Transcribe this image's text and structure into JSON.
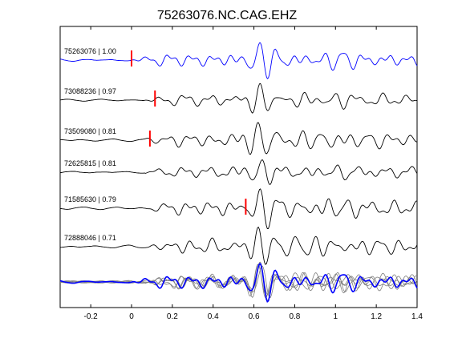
{
  "chart_data": {
    "type": "line",
    "title": "75263076.NC.CAG.EHZ",
    "xlabel": "",
    "ylabel": "",
    "xlim": [
      -0.35,
      1.4
    ],
    "xticks": [
      -0.2,
      0,
      0.2,
      0.4,
      0.6,
      0.8,
      1,
      1.2,
      1.4
    ],
    "xtick_labels": [
      "-0.2",
      "0",
      "0.2",
      "0.4",
      "0.6",
      "0.8",
      "1",
      "1.2",
      "1.4"
    ],
    "grid": false,
    "colors": {
      "primary": "#0000ff",
      "secondary": "#000000",
      "pick": "#ff0000",
      "stack": "#7f7f7f"
    },
    "series": [
      {
        "label": "75263076 | 1.00",
        "color": "#0000ff",
        "pick_time": 0.0,
        "seed": 1
      },
      {
        "label": "73088236 | 0.97",
        "color": "#000000",
        "pick_time": 0.115,
        "seed": 2
      },
      {
        "label": "73509080 | 0.81",
        "color": "#000000",
        "pick_time": 0.09,
        "seed": 3
      },
      {
        "label": "72625815 | 0.81",
        "color": "#000000",
        "pick_time": null,
        "seed": 4
      },
      {
        "label": "71585630 | 0.79",
        "color": "#000000",
        "pick_time": 0.56,
        "seed": 5
      },
      {
        "label": "72888046 | 0.71",
        "color": "#000000",
        "pick_time": null,
        "seed": 6
      }
    ]
  }
}
